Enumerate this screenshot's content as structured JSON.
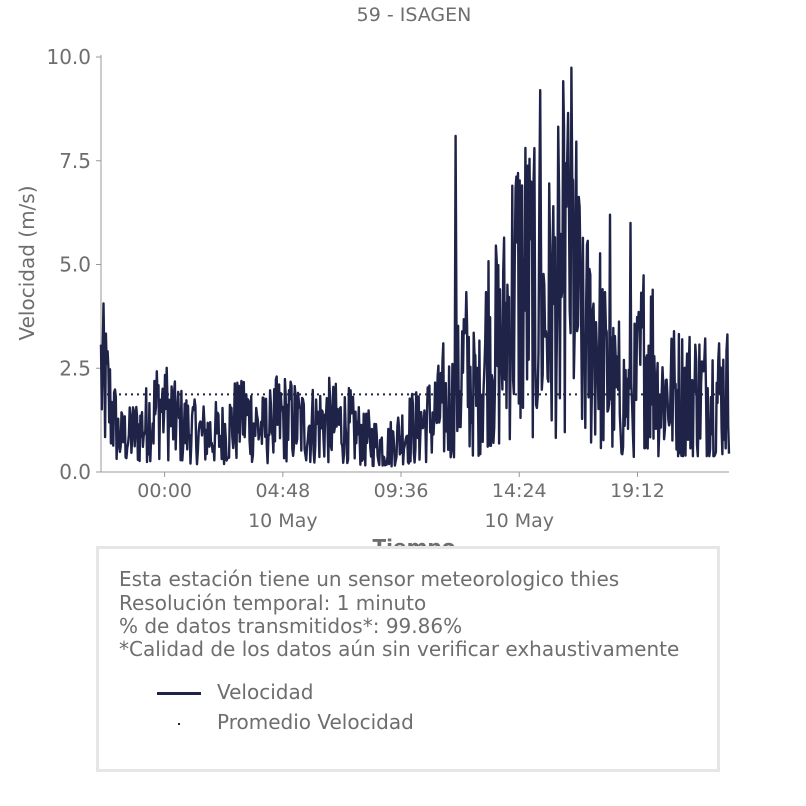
{
  "chart_data": {
    "type": "line",
    "title": "59 - ISAGEN",
    "xlabel": "Tiempo",
    "ylabel": "Velocidad (m/s)",
    "x_range": [
      "2024-05-09 21:25",
      "2024-05-10 22:55"
    ],
    "ylim": [
      0,
      10
    ],
    "y_ticks": [
      "0.0",
      "2.5",
      "5.0",
      "7.5",
      "10.0"
    ],
    "x_ticks": [
      {
        "time": "00:00",
        "label": "00:00",
        "sublabel": ""
      },
      {
        "time": "04:48",
        "label": "04:48",
        "sublabel": "10 May"
      },
      {
        "time": "09:36",
        "label": "09:36",
        "sublabel": ""
      },
      {
        "time": "14:24",
        "label": "14:24",
        "sublabel": "10 May"
      },
      {
        "time": "19:12",
        "label": "19:12",
        "sublabel": ""
      }
    ],
    "grid": false,
    "series": [
      {
        "name": "Velocidad",
        "style": "solid",
        "color": "#1f2347",
        "x": [
          "21:25",
          "22:10",
          "23:00",
          "23:50",
          "00:40",
          "01:30",
          "02:20",
          "03:10",
          "04:00",
          "04:50",
          "05:40",
          "06:30",
          "07:20",
          "08:10",
          "09:00",
          "09:50",
          "10:40",
          "11:10",
          "11:40",
          "12:10",
          "12:40",
          "13:10",
          "13:40",
          "14:10",
          "14:40",
          "15:00",
          "15:30",
          "16:00",
          "16:30",
          "17:00",
          "17:30",
          "18:00",
          "18:30",
          "19:00",
          "19:30",
          "20:00",
          "20:30",
          "21:00",
          "21:30",
          "22:00",
          "22:30",
          "22:55"
        ],
        "values": [
          2.4,
          0.8,
          1.0,
          1.6,
          1.1,
          0.9,
          0.9,
          1.4,
          1.0,
          1.3,
          1.1,
          1.2,
          1.1,
          0.8,
          0.6,
          1.0,
          1.2,
          1.5,
          1.6,
          2.6,
          1.7,
          3.2,
          2.9,
          4.4,
          4.6,
          4.1,
          3.8,
          4.2,
          5.4,
          3.0,
          3.5,
          2.1,
          1.8,
          1.7,
          2.9,
          2.6,
          2.2,
          2.2,
          2.0,
          1.7,
          2.2,
          1.9
        ],
        "peaks": [
          {
            "time": "11:49",
            "value": 8.1
          },
          {
            "time": "13:32",
            "value": 7.4
          },
          {
            "time": "15:15",
            "value": 9.2
          },
          {
            "time": "16:10",
            "value": 9.1
          },
          {
            "time": "16:40",
            "value": 8.4
          },
          {
            "time": "18:05",
            "value": 6.2
          },
          {
            "time": "18:55",
            "value": 6.0
          }
        ]
      },
      {
        "name": "Promedio Velocidad",
        "style": "dotted",
        "color": "#1f2347",
        "value": 1.87
      }
    ]
  },
  "info": {
    "line1": "Esta estación tiene un sensor meteorologico thies",
    "line2": "Resolución temporal: 1 minuto",
    "line3": "% de datos transmitidos*: 99.86%",
    "line4": "*Calidad de los datos aún sin verificar exhaustivamente"
  },
  "legend": {
    "line_label": "Velocidad",
    "dot_label": "Promedio Velocidad"
  }
}
